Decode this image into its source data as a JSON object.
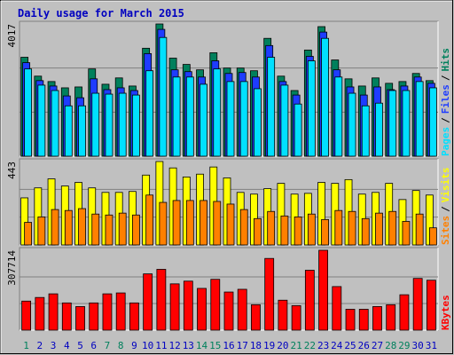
{
  "title": "Daily usage for March 2015",
  "legend_separator": "/",
  "chart_data": [
    {
      "type": "bar",
      "series": [
        {
          "name": "Hits",
          "color": "#00805c",
          "values": [
            3006,
            2432,
            2268,
            2077,
            2104,
            2651,
            2186,
            2378,
            2132,
            3280,
            4017,
            2979,
            2788,
            2624,
            3143,
            2678,
            2678,
            2596,
            3580,
            2432,
            1995,
            3225,
            3936,
            2924,
            2350,
            2132,
            2378,
            2214,
            2268,
            2514,
            2296
          ]
        },
        {
          "name": "Files",
          "color": "#1e3cff",
          "values": [
            2842,
            2296,
            2132,
            1831,
            1776,
            2350,
            2022,
            2077,
            1995,
            3116,
            3853,
            2624,
            2569,
            2405,
            2897,
            2514,
            2542,
            2405,
            3361,
            2268,
            1858,
            3033,
            3771,
            2624,
            2104,
            1858,
            2104,
            2022,
            2132,
            2405,
            2214
          ]
        },
        {
          "name": "Pages",
          "color": "#00e0ff",
          "values": [
            2651,
            2159,
            1995,
            1530,
            1530,
            1913,
            1886,
            1913,
            1858,
            2596,
            3607,
            2405,
            2405,
            2186,
            2651,
            2268,
            2268,
            2050,
            3006,
            2159,
            1585,
            2897,
            3580,
            2405,
            1913,
            1530,
            1612,
            1995,
            1995,
            2268,
            2077
          ]
        }
      ],
      "ylim": [
        0,
        4017
      ],
      "yticks": [
        4017
      ]
    },
    {
      "type": "bar",
      "series": [
        {
          "name": "Visits",
          "color": "#ffff00",
          "values": [
            250,
            303,
            351,
            313,
            332,
            303,
            279,
            279,
            284,
            371,
            443,
            409,
            361,
            376,
            414,
            356,
            279,
            270,
            299,
            327,
            270,
            274,
            332,
            327,
            347,
            270,
            279,
            327,
            241,
            289,
            265
          ]
        },
        {
          "name": "Sites",
          "color": "#ff8000",
          "values": [
            120,
            149,
            188,
            183,
            193,
            164,
            159,
            169,
            159,
            265,
            226,
            236,
            236,
            236,
            231,
            217,
            188,
            140,
            178,
            154,
            149,
            164,
            135,
            183,
            178,
            140,
            169,
            178,
            125,
            164,
            91
          ]
        }
      ],
      "ylim": [
        0,
        443
      ],
      "yticks": [
        443
      ]
    },
    {
      "type": "bar",
      "categories": [
        "1",
        "2",
        "3",
        "4",
        "5",
        "6",
        "7",
        "8",
        "9",
        "10",
        "11",
        "12",
        "13",
        "14",
        "15",
        "16",
        "17",
        "18",
        "19",
        "20",
        "21",
        "22",
        "23",
        "24",
        "25",
        "26",
        "27",
        "28",
        "29",
        "30",
        "31"
      ],
      "category_colors": [
        "#00805c",
        "#0000c0",
        "#0000c0",
        "#0000c0",
        "#0000c0",
        "#0000c0",
        "#00805c",
        "#00805c",
        "#0000c0",
        "#0000c0",
        "#0000c0",
        "#0000c0",
        "#0000c0",
        "#00805c",
        "#00805c",
        "#0000c0",
        "#0000c0",
        "#0000c0",
        "#0000c0",
        "#0000c0",
        "#00805c",
        "#00805c",
        "#0000c0",
        "#0000c0",
        "#0000c0",
        "#0000c0",
        "#0000c0",
        "#00805c",
        "#00805c",
        "#0000c0",
        "#0000c0"
      ],
      "series": [
        {
          "name": "KBytes",
          "color": "#ff0000",
          "values": [
            111900,
            125890,
            139880,
            104910,
            90920,
            104910,
            139880,
            143380,
            104910,
            216810,
            234300,
            178350,
            188840,
            160860,
            195830,
            146870,
            157370,
            97920,
            276260,
            115400,
            94420,
            230800,
            307714,
            167860,
            80430,
            80430,
            90920,
            97920,
            136380,
            199330,
            192330
          ]
        }
      ],
      "ylim": [
        0,
        307714
      ],
      "yticks": [
        307714
      ]
    }
  ]
}
